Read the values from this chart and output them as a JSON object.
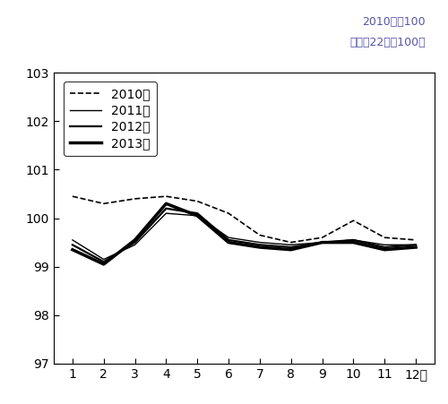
{
  "months": [
    1,
    2,
    3,
    4,
    5,
    6,
    7,
    8,
    9,
    10,
    11,
    12
  ],
  "series": {
    "2010年": {
      "values": [
        100.45,
        100.3,
        100.4,
        100.45,
        100.35,
        100.1,
        99.65,
        99.5,
        99.6,
        99.95,
        99.6,
        99.55
      ],
      "linestyle": "dashed",
      "linewidth": 1.2,
      "color": "#000000"
    },
    "2011年": {
      "values": [
        99.55,
        99.15,
        99.45,
        100.1,
        100.05,
        99.6,
        99.5,
        99.45,
        99.5,
        99.55,
        99.45,
        99.45
      ],
      "linestyle": "solid",
      "linewidth": 1.0,
      "color": "#000000"
    },
    "2012年": {
      "values": [
        99.45,
        99.1,
        99.5,
        100.2,
        100.1,
        99.55,
        99.45,
        99.4,
        99.5,
        99.55,
        99.4,
        99.45
      ],
      "linestyle": "solid",
      "linewidth": 1.6,
      "color": "#000000"
    },
    "2013年": {
      "values": [
        99.35,
        99.05,
        99.55,
        100.3,
        100.05,
        99.5,
        99.4,
        99.35,
        99.5,
        99.5,
        99.35,
        99.4
      ],
      "linestyle": "solid",
      "linewidth": 2.5,
      "color": "#000000"
    }
  },
  "ylim": [
    97,
    103
  ],
  "yticks": [
    97,
    98,
    99,
    100,
    101,
    102,
    103
  ],
  "xtick_labels": [
    "1",
    "2",
    "3",
    "4",
    "5",
    "6",
    "7",
    "8",
    "9",
    "10",
    "11",
    "12月"
  ],
  "annotation_line1": "2010年＝100",
  "annotation_line2": "（平成22年＝100）",
  "legend_order": [
    "2010年",
    "2011年",
    "2012年",
    "2013年"
  ],
  "annotation_color": "#5555aa",
  "background_color": "#ffffff"
}
